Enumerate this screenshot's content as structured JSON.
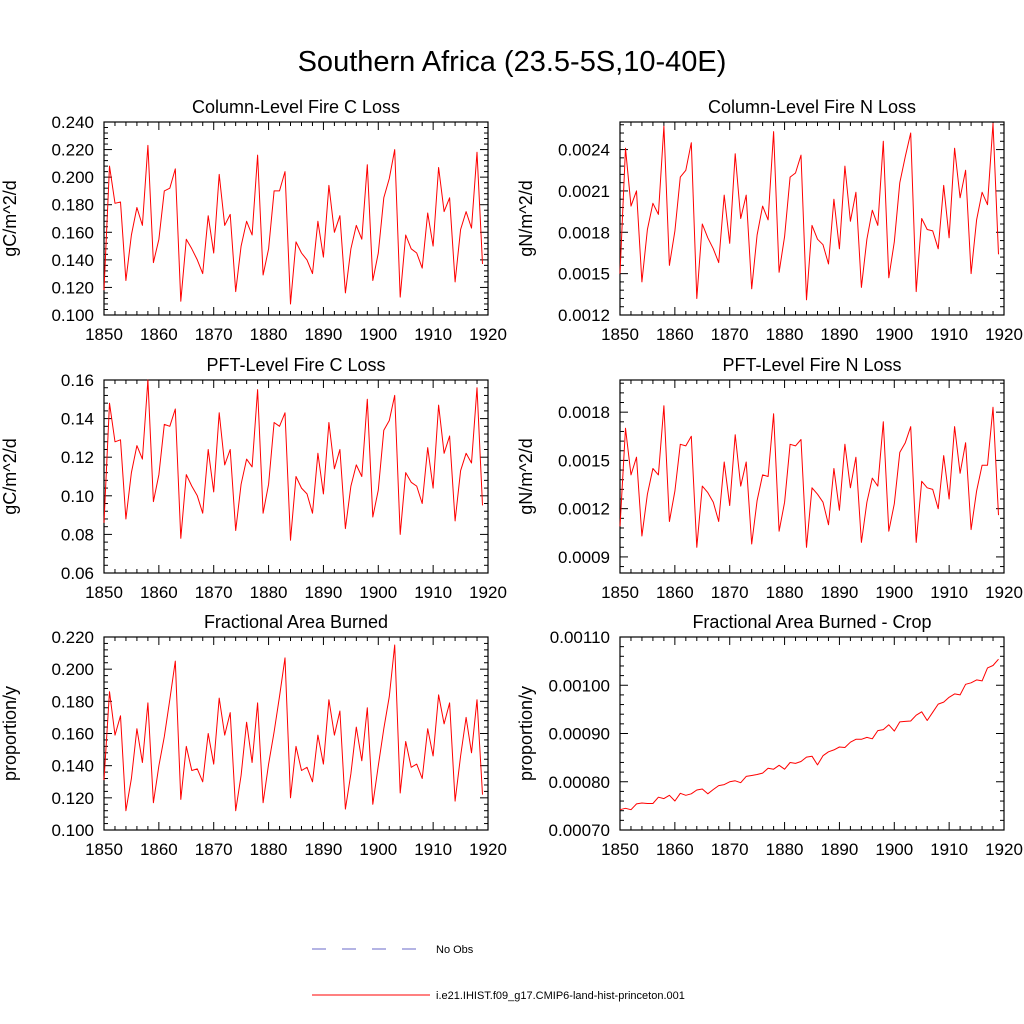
{
  "title": "Southern Africa (23.5-5S,10-40E)",
  "colors": {
    "series": "#ff0000",
    "obs": "#6a6ac8",
    "axis": "#000000"
  },
  "legend": [
    {
      "label": "No Obs",
      "style": "dashed",
      "color": "#6a6ac8"
    },
    {
      "label": "i.e21.IHIST.f09_g17.CMIP6-land-hist-princeton.001",
      "style": "solid",
      "color": "#ff0000"
    }
  ],
  "chart_data": [
    {
      "type": "line",
      "title": "Column-Level Fire C Loss",
      "ylabel": "gC/m^2/d",
      "xlim": [
        1850,
        1920
      ],
      "ylim": [
        0.1,
        0.24
      ],
      "xticks": [
        "1850",
        "1860",
        "1870",
        "1880",
        "1890",
        "1900",
        "1910",
        "1920"
      ],
      "yticks": [
        "0.100",
        "0.120",
        "0.140",
        "0.160",
        "0.180",
        "0.200",
        "0.220",
        "0.240"
      ],
      "x_start": 1850,
      "series": [
        {
          "values": [
            0.118,
            0.208,
            0.181,
            0.182,
            0.125,
            0.158,
            0.178,
            0.165,
            0.223,
            0.138,
            0.155,
            0.19,
            0.192,
            0.206,
            0.11,
            0.155,
            0.148,
            0.14,
            0.13,
            0.172,
            0.145,
            0.202,
            0.165,
            0.173,
            0.117,
            0.15,
            0.168,
            0.158,
            0.216,
            0.129,
            0.148,
            0.19,
            0.19,
            0.204,
            0.108,
            0.153,
            0.145,
            0.14,
            0.13,
            0.168,
            0.142,
            0.194,
            0.16,
            0.172,
            0.116,
            0.148,
            0.165,
            0.155,
            0.209,
            0.125,
            0.145,
            0.185,
            0.199,
            0.22,
            0.113,
            0.158,
            0.148,
            0.145,
            0.134,
            0.174,
            0.15,
            0.207,
            0.175,
            0.185,
            0.124,
            0.162,
            0.175,
            0.163,
            0.218,
            0.137
          ]
        }
      ]
    },
    {
      "type": "line",
      "title": "Column-Level Fire N Loss",
      "ylabel": "gN/m^2/d",
      "xlim": [
        1850,
        1920
      ],
      "ylim": [
        0.0012,
        0.0026
      ],
      "xticks": [
        "1850",
        "1860",
        "1870",
        "1880",
        "1890",
        "1900",
        "1910",
        "1920"
      ],
      "yticks": [
        "0.0012",
        "0.0015",
        "0.0018",
        "0.0021",
        "0.0024"
      ],
      "x_start": 1850,
      "series": [
        {
          "values": [
            0.0015,
            0.00241,
            0.00199,
            0.0021,
            0.00144,
            0.00182,
            0.00201,
            0.00193,
            0.00257,
            0.00156,
            0.00181,
            0.0022,
            0.00225,
            0.00245,
            0.00132,
            0.00186,
            0.00176,
            0.00168,
            0.00158,
            0.00207,
            0.00172,
            0.00237,
            0.0019,
            0.00207,
            0.00139,
            0.00178,
            0.00199,
            0.00189,
            0.00253,
            0.00151,
            0.00177,
            0.0022,
            0.00223,
            0.00236,
            0.00131,
            0.00185,
            0.00175,
            0.00171,
            0.00157,
            0.00204,
            0.00168,
            0.00228,
            0.00188,
            0.00209,
            0.0014,
            0.00175,
            0.00196,
            0.00185,
            0.00246,
            0.00147,
            0.00173,
            0.00216,
            0.00235,
            0.00252,
            0.00137,
            0.0019,
            0.00182,
            0.00181,
            0.00168,
            0.00214,
            0.00176,
            0.00241,
            0.00205,
            0.00225,
            0.0015,
            0.00189,
            0.00209,
            0.002,
            0.00259,
            0.00164
          ]
        }
      ]
    },
    {
      "type": "line",
      "title": "PFT-Level Fire C Loss",
      "ylabel": "gC/m^2/d",
      "xlim": [
        1850,
        1920
      ],
      "ylim": [
        0.06,
        0.16
      ],
      "xticks": [
        "1850",
        "1860",
        "1870",
        "1880",
        "1890",
        "1900",
        "1910",
        "1920"
      ],
      "yticks": [
        "0.06",
        "0.08",
        "0.10",
        "0.12",
        "0.14",
        "0.16"
      ],
      "x_start": 1850,
      "series": [
        {
          "values": [
            0.086,
            0.148,
            0.128,
            0.129,
            0.088,
            0.112,
            0.126,
            0.119,
            0.16,
            0.097,
            0.111,
            0.137,
            0.136,
            0.145,
            0.078,
            0.111,
            0.105,
            0.1,
            0.091,
            0.124,
            0.102,
            0.143,
            0.116,
            0.124,
            0.082,
            0.106,
            0.119,
            0.115,
            0.155,
            0.091,
            0.106,
            0.138,
            0.136,
            0.143,
            0.077,
            0.11,
            0.104,
            0.101,
            0.091,
            0.122,
            0.101,
            0.138,
            0.114,
            0.124,
            0.083,
            0.105,
            0.116,
            0.11,
            0.15,
            0.089,
            0.103,
            0.134,
            0.139,
            0.152,
            0.08,
            0.112,
            0.107,
            0.105,
            0.096,
            0.125,
            0.104,
            0.147,
            0.122,
            0.131,
            0.087,
            0.113,
            0.122,
            0.117,
            0.156,
            0.095
          ]
        }
      ]
    },
    {
      "type": "line",
      "title": "PFT-Level Fire N Loss",
      "ylabel": "gN/m^2/d",
      "xlim": [
        1850,
        1920
      ],
      "ylim": [
        0.0008,
        0.002
      ],
      "xticks": [
        "1850",
        "1860",
        "1870",
        "1880",
        "1890",
        "1900",
        "1910",
        "1920"
      ],
      "yticks": [
        "0.0009",
        "0.0012",
        "0.0015",
        "0.0018"
      ],
      "x_start": 1850,
      "series": [
        {
          "values": [
            0.00109,
            0.0017,
            0.00141,
            0.00152,
            0.00103,
            0.00129,
            0.00145,
            0.00141,
            0.00184,
            0.00112,
            0.00131,
            0.0016,
            0.00159,
            0.00165,
            0.00096,
            0.00134,
            0.0013,
            0.00124,
            0.00112,
            0.00149,
            0.00122,
            0.00166,
            0.00134,
            0.00149,
            0.00098,
            0.00125,
            0.00141,
            0.0014,
            0.00179,
            0.00106,
            0.00124,
            0.0016,
            0.00159,
            0.00163,
            0.00096,
            0.00133,
            0.00129,
            0.00124,
            0.0011,
            0.00145,
            0.00119,
            0.0016,
            0.00133,
            0.00152,
            0.00099,
            0.00124,
            0.00139,
            0.00134,
            0.00174,
            0.00106,
            0.00123,
            0.00155,
            0.00161,
            0.00171,
            0.00099,
            0.00137,
            0.00133,
            0.00132,
            0.0012,
            0.00153,
            0.00126,
            0.00171,
            0.00142,
            0.00161,
            0.00107,
            0.00131,
            0.00147,
            0.00147,
            0.00183,
            0.00116
          ]
        }
      ]
    },
    {
      "type": "line",
      "title": "Fractional Area Burned",
      "ylabel": "proportion/y",
      "xlim": [
        1850,
        1920
      ],
      "ylim": [
        0.1,
        0.22
      ],
      "xticks": [
        "1850",
        "1860",
        "1870",
        "1880",
        "1890",
        "1900",
        "1910",
        "1920"
      ],
      "yticks": [
        "0.100",
        "0.120",
        "0.140",
        "0.160",
        "0.180",
        "0.200",
        "0.220"
      ],
      "x_start": 1850,
      "series": [
        {
          "values": [
            0.131,
            0.186,
            0.159,
            0.171,
            0.112,
            0.132,
            0.163,
            0.142,
            0.179,
            0.117,
            0.14,
            0.158,
            0.181,
            0.205,
            0.119,
            0.152,
            0.137,
            0.138,
            0.13,
            0.16,
            0.141,
            0.182,
            0.159,
            0.173,
            0.112,
            0.134,
            0.167,
            0.142,
            0.179,
            0.117,
            0.141,
            0.161,
            0.183,
            0.207,
            0.12,
            0.152,
            0.137,
            0.139,
            0.13,
            0.159,
            0.141,
            0.181,
            0.159,
            0.174,
            0.113,
            0.135,
            0.164,
            0.143,
            0.176,
            0.116,
            0.14,
            0.163,
            0.183,
            0.215,
            0.123,
            0.155,
            0.139,
            0.141,
            0.132,
            0.163,
            0.146,
            0.184,
            0.166,
            0.179,
            0.118,
            0.146,
            0.17,
            0.148,
            0.181,
            0.122
          ]
        }
      ]
    },
    {
      "type": "line",
      "title": "Fractional Area Burned - Crop",
      "ylabel": "proportion/y",
      "xlim": [
        1850,
        1920
      ],
      "ylim": [
        0.0007,
        0.0011
      ],
      "xticks": [
        "1850",
        "1860",
        "1870",
        "1880",
        "1890",
        "1900",
        "1910",
        "1920"
      ],
      "yticks": [
        "0.00070",
        "0.00080",
        "0.00090",
        "0.00100",
        "0.00110"
      ],
      "x_start": 1850,
      "series": [
        {
          "values": [
            0.000742,
            0.000745,
            0.000742,
            0.000754,
            0.000756,
            0.000755,
            0.000755,
            0.000768,
            0.000765,
            0.000772,
            0.00076,
            0.000776,
            0.000772,
            0.000775,
            0.000783,
            0.000785,
            0.000775,
            0.000784,
            0.000792,
            0.000794,
            0.0008,
            0.000802,
            0.000798,
            0.000811,
            0.000813,
            0.000815,
            0.000818,
            0.000828,
            0.000826,
            0.000834,
            0.000826,
            0.00084,
            0.000838,
            0.000842,
            0.000851,
            0.000853,
            0.000835,
            0.000854,
            0.000862,
            0.000866,
            0.000872,
            0.000871,
            0.000882,
            0.000888,
            0.000888,
            0.000892,
            0.000889,
            0.000906,
            0.000908,
            0.000918,
            0.000905,
            0.000924,
            0.000925,
            0.000926,
            0.000938,
            0.000945,
            0.000927,
            0.000944,
            0.000961,
            0.000965,
            0.000975,
            0.000982,
            0.00098,
            0.001002,
            0.001005,
            0.001011,
            0.001009,
            0.001036,
            0.001041,
            0.001054
          ]
        }
      ]
    }
  ]
}
